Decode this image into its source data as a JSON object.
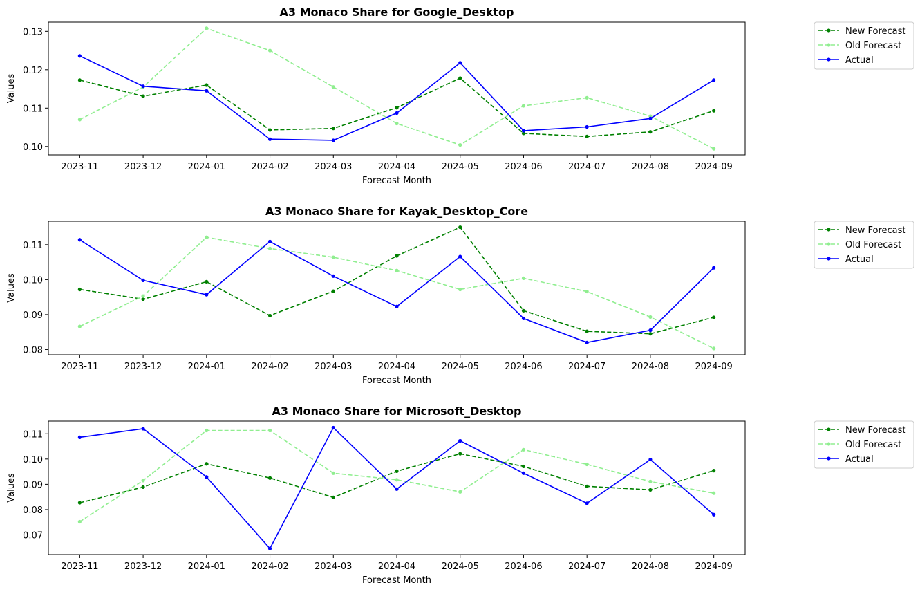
{
  "chart_data": [
    {
      "type": "line",
      "title": "A3 Monaco Share for Google_Desktop",
      "xlabel": "Forecast Month",
      "ylabel": "Values",
      "categories": [
        "2023-11",
        "2023-12",
        "2024-01",
        "2024-02",
        "2024-03",
        "2024-04",
        "2024-05",
        "2024-06",
        "2024-07",
        "2024-08",
        "2024-09"
      ],
      "ylim": [
        0.0978,
        0.1324
      ],
      "yticks": [
        0.1,
        0.11,
        0.12,
        0.13
      ],
      "ytick_labels": [
        "0.10",
        "0.11",
        "0.12",
        "0.13"
      ],
      "grid": false,
      "legend_position": "outside right",
      "series": [
        {
          "name": "New Forecast",
          "color": "#008000",
          "style": "dashed",
          "values": [
            0.1173,
            0.1131,
            0.116,
            0.1043,
            0.1047,
            0.1101,
            0.1178,
            0.1034,
            0.1026,
            0.1038,
            0.1093
          ]
        },
        {
          "name": "Old Forecast",
          "color": "#90ee90",
          "style": "dashed",
          "values": [
            0.107,
            0.1155,
            0.1308,
            0.125,
            0.1155,
            0.106,
            0.1004,
            0.1106,
            0.1127,
            0.1079,
            0.0994
          ]
        },
        {
          "name": "Actual",
          "color": "#0000ff",
          "style": "solid",
          "values": [
            0.1236,
            0.1157,
            0.1145,
            0.1019,
            0.1016,
            0.1087,
            0.1218,
            0.1041,
            0.1051,
            0.1073,
            0.1173
          ]
        }
      ]
    },
    {
      "type": "line",
      "title": "A3 Monaco Share for Kayak_Desktop_Core",
      "xlabel": "Forecast Month",
      "ylabel": "Values",
      "categories": [
        "2023-11",
        "2023-12",
        "2024-01",
        "2024-02",
        "2024-03",
        "2024-04",
        "2024-05",
        "2024-06",
        "2024-07",
        "2024-08",
        "2024-09"
      ],
      "ylim": [
        0.0785,
        0.1167
      ],
      "yticks": [
        0.08,
        0.09,
        0.1,
        0.11
      ],
      "ytick_labels": [
        "0.08",
        "0.09",
        "0.10",
        "0.11"
      ],
      "grid": false,
      "legend_position": "outside right",
      "series": [
        {
          "name": "New Forecast",
          "color": "#008000",
          "style": "dashed",
          "values": [
            0.0972,
            0.0944,
            0.0994,
            0.0897,
            0.0967,
            0.1068,
            0.115,
            0.0911,
            0.0852,
            0.0845,
            0.0892
          ]
        },
        {
          "name": "Old Forecast",
          "color": "#90ee90",
          "style": "dashed",
          "values": [
            0.0866,
            0.0953,
            0.1121,
            0.1089,
            0.1064,
            0.1026,
            0.0972,
            0.1004,
            0.0966,
            0.0893,
            0.0803
          ]
        },
        {
          "name": "Actual",
          "color": "#0000ff",
          "style": "solid",
          "values": [
            0.1114,
            0.0998,
            0.0957,
            0.1109,
            0.101,
            0.0923,
            0.1066,
            0.0889,
            0.082,
            0.0855,
            0.1034
          ]
        }
      ]
    },
    {
      "type": "line",
      "title": "A3 Monaco Share for Microsoft_Desktop",
      "xlabel": "Forecast Month",
      "ylabel": "Values",
      "categories": [
        "2023-11",
        "2023-12",
        "2024-01",
        "2024-02",
        "2024-03",
        "2024-04",
        "2024-05",
        "2024-06",
        "2024-07",
        "2024-08",
        "2024-09"
      ],
      "ylim": [
        0.0622,
        0.115
      ],
      "yticks": [
        0.07,
        0.08,
        0.09,
        0.1,
        0.11
      ],
      "ytick_labels": [
        "0.07",
        "0.08",
        "0.09",
        "0.10",
        "0.11"
      ],
      "grid": false,
      "legend_position": "outside right",
      "series": [
        {
          "name": "New Forecast",
          "color": "#008000",
          "style": "dashed",
          "values": [
            0.0827,
            0.0889,
            0.0981,
            0.0925,
            0.0848,
            0.0952,
            0.1021,
            0.0971,
            0.0892,
            0.0878,
            0.0954
          ]
        },
        {
          "name": "Old Forecast",
          "color": "#90ee90",
          "style": "dashed",
          "values": [
            0.0752,
            0.0915,
            0.1113,
            0.1113,
            0.0944,
            0.0918,
            0.087,
            0.1037,
            0.0979,
            0.0911,
            0.0865
          ]
        },
        {
          "name": "Actual",
          "color": "#0000ff",
          "style": "solid",
          "values": [
            0.1086,
            0.112,
            0.0929,
            0.0646,
            0.1124,
            0.0881,
            0.1072,
            0.0944,
            0.0825,
            0.0998,
            0.078
          ]
        }
      ]
    }
  ]
}
